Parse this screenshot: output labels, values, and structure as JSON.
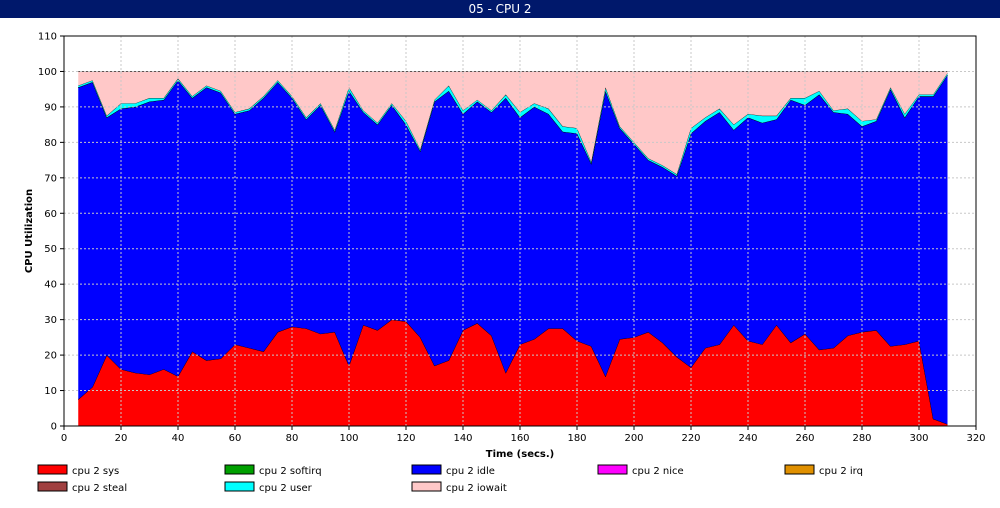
{
  "window": {
    "title": "05 - CPU 2"
  },
  "chart_data": {
    "type": "area",
    "stacked": true,
    "xlabel": "Time (secs.)",
    "ylabel": "CPU Utilization",
    "xlim": [
      0,
      320
    ],
    "ylim": [
      0,
      110
    ],
    "xticks": [
      0,
      20,
      40,
      60,
      80,
      100,
      120,
      140,
      160,
      180,
      200,
      220,
      240,
      260,
      280,
      300,
      320
    ],
    "yticks": [
      0,
      10,
      20,
      30,
      40,
      50,
      60,
      70,
      80,
      90,
      100,
      110
    ],
    "grid": true,
    "legend_position": "bottom",
    "x": [
      5,
      10,
      15,
      20,
      25,
      30,
      35,
      40,
      45,
      50,
      55,
      60,
      65,
      70,
      75,
      80,
      85,
      90,
      95,
      100,
      105,
      110,
      115,
      120,
      125,
      130,
      135,
      140,
      145,
      150,
      155,
      160,
      165,
      170,
      175,
      180,
      185,
      190,
      195,
      200,
      205,
      210,
      215,
      220,
      225,
      230,
      235,
      240,
      245,
      250,
      255,
      260,
      265,
      270,
      275,
      280,
      285,
      290,
      295,
      300,
      305,
      310
    ],
    "series": [
      {
        "name": "cpu 2 sys",
        "color": "#ff0000",
        "values": [
          7.5,
          11,
          20,
          16,
          15,
          14.5,
          16,
          14,
          21,
          18.5,
          19,
          23,
          22,
          21,
          26.5,
          28,
          27.5,
          26,
          26.5,
          17,
          28.5,
          27,
          30,
          29.5,
          25,
          17,
          18.5,
          27,
          29,
          25.5,
          15,
          23,
          24.5,
          27.5,
          27.5,
          24,
          22.5,
          14,
          24.5,
          25,
          26.5,
          23.5,
          19.5,
          16.5,
          22,
          23,
          28.5,
          24,
          23,
          28.5,
          23.5,
          26,
          21.5,
          22,
          25.5,
          26.5,
          27,
          22.5,
          23,
          24,
          2,
          0.5
        ]
      },
      {
        "name": "cpu 2 softirq",
        "color": "#00a000",
        "values": [
          0,
          0,
          0,
          0,
          0,
          0,
          0,
          0,
          0,
          0,
          0,
          0,
          0,
          0,
          0,
          0,
          0,
          0,
          0,
          0,
          0,
          0,
          0,
          0,
          0,
          0,
          0,
          0,
          0,
          0,
          0,
          0,
          0,
          0,
          0,
          0,
          0,
          0,
          0,
          0,
          0,
          0,
          0,
          0,
          0,
          0,
          0,
          0,
          0,
          0,
          0,
          0,
          0,
          0,
          0,
          0,
          0,
          0,
          0,
          0,
          0,
          0
        ]
      },
      {
        "name": "cpu 2 idle",
        "color": "#0000ff",
        "values": [
          88,
          86,
          67,
          73.5,
          75,
          77,
          76,
          83.5,
          71.5,
          77,
          75,
          65,
          67,
          71.5,
          70.5,
          64.5,
          59,
          64.5,
          56.5,
          77.5,
          60,
          58,
          60.5,
          55.5,
          52.5,
          74.5,
          76,
          61,
          62.5,
          63,
          77.5,
          64,
          65.5,
          60.5,
          55.5,
          58.5,
          51.5,
          80.5,
          59.5,
          54.5,
          48.5,
          49.5,
          51,
          66,
          64,
          65.5,
          55,
          63,
          62.5,
          58,
          68.5,
          64.5,
          72,
          66.5,
          62.5,
          58,
          59,
          72.5,
          64,
          69,
          91,
          98.5
        ]
      },
      {
        "name": "cpu 2 nice",
        "color": "#ff00ff",
        "values": [
          0,
          0,
          0,
          0,
          0,
          0,
          0,
          0,
          0,
          0,
          0,
          0,
          0,
          0,
          0,
          0,
          0,
          0,
          0,
          0,
          0,
          0,
          0,
          0,
          0,
          0,
          0,
          0,
          0,
          0,
          0,
          0,
          0,
          0,
          0,
          0,
          0,
          0,
          0,
          0,
          0,
          0,
          0,
          0,
          0,
          0,
          0,
          0,
          0,
          0,
          0,
          0,
          0,
          0,
          0,
          0,
          0,
          0,
          0,
          0,
          0,
          0
        ]
      },
      {
        "name": "cpu 2 irq",
        "color": "#e09000",
        "values": [
          0,
          0,
          0,
          0,
          0,
          0,
          0,
          0,
          0,
          0,
          0,
          0,
          0,
          0,
          0,
          0,
          0,
          0,
          0,
          0,
          0,
          0,
          0,
          0,
          0,
          0,
          0,
          0,
          0,
          0,
          0,
          0,
          0,
          0,
          0,
          0,
          0,
          0,
          0,
          0,
          0,
          0,
          0,
          0,
          0,
          0,
          0,
          0,
          0,
          0,
          0,
          0,
          0,
          0,
          0,
          0,
          0,
          0,
          0,
          0,
          0,
          0
        ]
      },
      {
        "name": "cpu 2 steal",
        "color": "#a04040",
        "values": [
          0,
          0,
          0,
          0,
          0,
          0,
          0,
          0,
          0,
          0,
          0,
          0,
          0,
          0,
          0,
          0,
          0,
          0,
          0,
          0,
          0,
          0,
          0,
          0,
          0,
          0,
          0,
          0,
          0,
          0,
          0,
          0,
          0,
          0,
          0,
          0,
          0,
          0,
          0,
          0,
          0,
          0,
          0,
          0,
          0,
          0,
          0,
          0,
          0,
          0,
          0,
          0,
          0,
          0,
          0,
          0,
          0,
          0,
          0,
          0,
          0,
          0
        ]
      },
      {
        "name": "cpu 2 user",
        "color": "#00ffff",
        "values": [
          0.5,
          0.5,
          0.5,
          1.5,
          1,
          1,
          0.5,
          0.5,
          0.5,
          0.5,
          0.5,
          0.5,
          0.5,
          0.5,
          0.5,
          0.5,
          0.5,
          0.5,
          0.5,
          1,
          0.5,
          0.5,
          0.5,
          1,
          0.5,
          0.5,
          1.5,
          1,
          0.5,
          0.5,
          1,
          1.5,
          1,
          1.5,
          1.5,
          1.5,
          0.5,
          1,
          0.5,
          0.5,
          0.5,
          0.5,
          0.5,
          1.5,
          1,
          1,
          1.5,
          1,
          2,
          1,
          0.5,
          2,
          1,
          0.5,
          1.5,
          1.5,
          0.5,
          0.5,
          1,
          0.5,
          0.5,
          0.5
        ]
      },
      {
        "name": "cpu 2 iowait",
        "color": "#ffc8c8",
        "values": [
          4,
          2.5,
          12.5,
          9,
          9,
          7.5,
          7.5,
          2,
          7,
          4,
          5.5,
          11.5,
          10.5,
          7,
          2.5,
          7,
          13,
          9,
          16.5,
          4.5,
          11,
          14.5,
          9,
          14,
          22,
          8,
          4,
          11,
          8,
          11,
          6.5,
          11.5,
          9,
          10.5,
          15.5,
          16,
          25.5,
          4.5,
          15.5,
          20,
          24.5,
          26.5,
          29,
          16,
          13,
          10.5,
          15,
          12,
          12.5,
          12.5,
          7.5,
          7.5,
          5.5,
          11,
          10.5,
          14,
          13.5,
          4.5,
          12,
          6.5,
          6.5,
          0.5
        ]
      }
    ]
  }
}
